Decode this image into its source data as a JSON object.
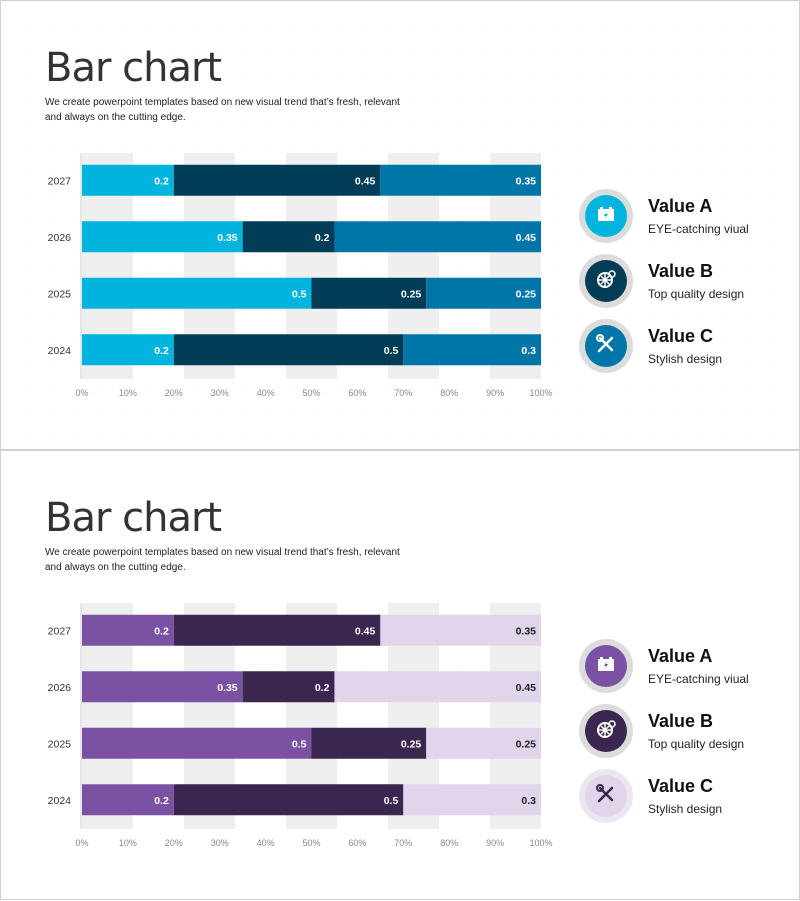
{
  "panels": [
    {
      "title": "Bar chart",
      "subtitle": "We create powerpoint templates based on new visual trend that’s fresh, relevant and always on the cutting edge.",
      "colors": [
        "#00b4de",
        "#023d58",
        "#0076a8"
      ],
      "label_colors": [
        "#ffffff",
        "#ffffff",
        "#ffffff"
      ],
      "legend_ring": [
        "#dcdcdc",
        "#dcdcdc",
        "#dcdcdc"
      ],
      "legend": [
        {
          "title": "Value A",
          "text": "EYE-catching viual",
          "icon": "battery-icon"
        },
        {
          "title": "Value B",
          "text": "Top quality design",
          "icon": "wheel-gear-icon"
        },
        {
          "title": "Value C",
          "text": "Stylish design",
          "icon": "tools-icon"
        }
      ]
    },
    {
      "title": "Bar chart",
      "subtitle": "We create powerpoint templates based on new visual trend that’s fresh, relevant and always on the cutting edge.",
      "colors": [
        "#7b52a3",
        "#3b2650",
        "#e0d5ea"
      ],
      "label_colors": [
        "#ffffff",
        "#ffffff",
        "#222222"
      ],
      "legend_ring": [
        "#dcdcdc",
        "#dcdcdc",
        "#ece6f1"
      ],
      "legend": [
        {
          "title": "Value A",
          "text": "EYE-catching viual",
          "icon": "battery-icon"
        },
        {
          "title": "Value B",
          "text": "Top quality design",
          "icon": "wheel-gear-icon"
        },
        {
          "title": "Value C",
          "text": "Stylish design",
          "icon": "tools-icon"
        }
      ]
    }
  ],
  "chart_data": [
    {
      "type": "bar",
      "orientation": "horizontal",
      "stacked": true,
      "categories": [
        "2027",
        "2026",
        "2025",
        "2024"
      ],
      "series": [
        {
          "values": [
            0.2,
            0.35,
            0.5,
            0.2
          ]
        },
        {
          "values": [
            0.45,
            0.2,
            0.25,
            0.5
          ]
        },
        {
          "values": [
            0.35,
            0.45,
            0.25,
            0.3
          ]
        }
      ],
      "xticks": [
        "0%",
        "10%",
        "20%",
        "30%",
        "40%",
        "50%",
        "60%",
        "70%",
        "80%",
        "90%",
        "100%"
      ],
      "xlim": [
        0,
        1
      ],
      "grid": "alternating bands"
    },
    {
      "type": "bar",
      "orientation": "horizontal",
      "stacked": true,
      "categories": [
        "2027",
        "2026",
        "2025",
        "2024"
      ],
      "series": [
        {
          "values": [
            0.2,
            0.35,
            0.5,
            0.2
          ]
        },
        {
          "values": [
            0.45,
            0.2,
            0.25,
            0.5
          ]
        },
        {
          "values": [
            0.35,
            0.45,
            0.25,
            0.3
          ]
        }
      ],
      "xticks": [
        "0%",
        "10%",
        "20%",
        "30%",
        "40%",
        "50%",
        "60%",
        "70%",
        "80%",
        "90%",
        "100%"
      ],
      "xlim": [
        0,
        1
      ],
      "grid": "alternating bands"
    }
  ]
}
